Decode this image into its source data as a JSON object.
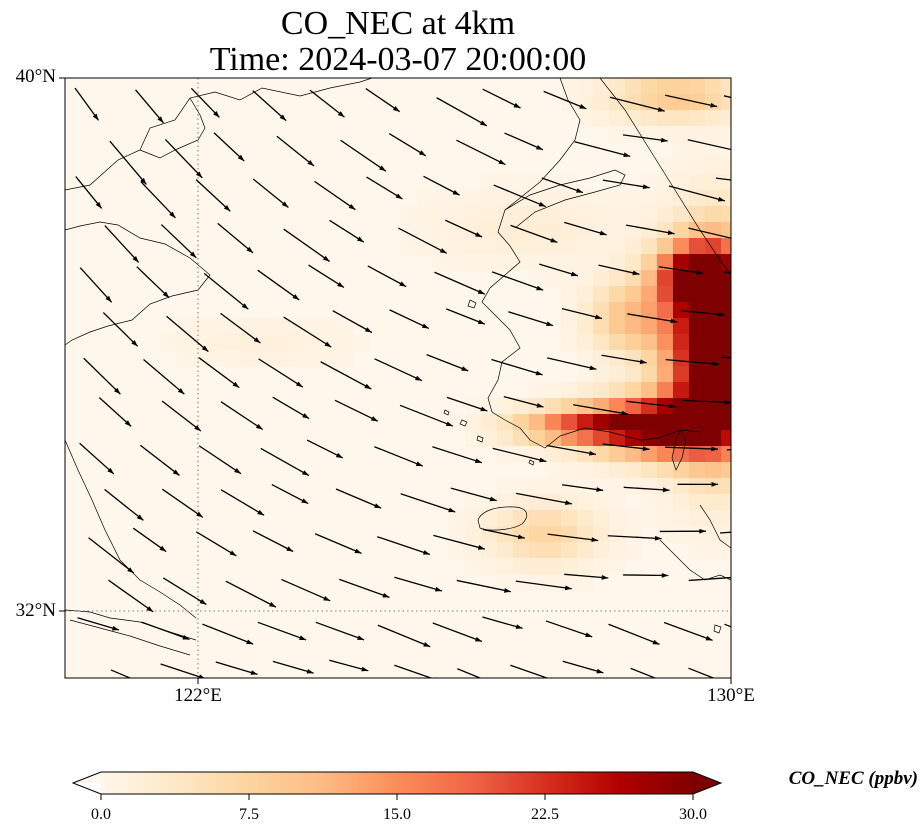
{
  "title": {
    "line1": "CO_NEC at 4km",
    "line2": "Time: 2024-03-07 20:00:00"
  },
  "axes": {
    "lat_labels": [
      "40°N",
      "32°N"
    ],
    "lon_labels": [
      "122°E",
      "130°E"
    ],
    "lon_range": [
      120,
      130
    ],
    "lat_range": [
      31,
      40
    ],
    "gridlines": {
      "lons": [
        122
      ],
      "lats": [
        32
      ],
      "style": "dotted"
    }
  },
  "colorbar": {
    "label": "CO_NEC (ppbv)",
    "colormap": "OrRd",
    "min": 0.0,
    "max": 30.0,
    "extend": "both",
    "tick_labels": [
      "0.0",
      "7.5",
      "15.0",
      "22.5",
      "30.0"
    ],
    "ticks": [
      0,
      7.5,
      15,
      22.5,
      30
    ],
    "colors": [
      "#fff7ec",
      "#fee8c8",
      "#fdd49e",
      "#fdbb84",
      "#fc8d59",
      "#ef6548",
      "#d7301f",
      "#b30000",
      "#7f0000"
    ]
  },
  "field_description": "Concentration low (near 0) over most of domain; high plume (up to and above 30 ppbv) over southern Korean peninsula and east edge near 34-37°N, 128-130°E; moderate patches over the northern Korea coast near 38.5-40°N, 128-130°E and south of Korea near 33°N, 127°E",
  "wind": {
    "description": "Wind vectors predominantly from northwest toward southeast; eastward in the northeast and southeast of the domain",
    "color": "#000000"
  }
}
